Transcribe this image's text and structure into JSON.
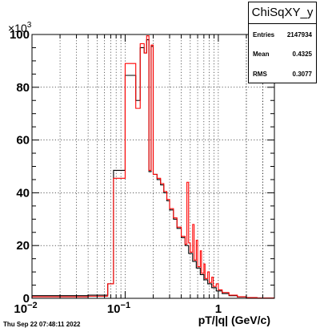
{
  "chart_data": {
    "type": "histogram",
    "title": "",
    "xlabel": "pT/|q| (GeV/c)",
    "ylabel": "",
    "x_scale": "log",
    "xlim": [
      0.01,
      4.0
    ],
    "ylim": [
      0,
      100000
    ],
    "y_exponent_label": "×10",
    "y_exponent_power": "3",
    "grid": true,
    "x_tick_labels": [
      {
        "x": 0.01,
        "label": "10",
        "power": "−2"
      },
      {
        "x": 0.1,
        "label": "10",
        "power": "−1"
      },
      {
        "x": 1,
        "label": "1",
        "power": ""
      }
    ],
    "y_tick_labels": [
      {
        "y": 0,
        "label": "0"
      },
      {
        "y": 20000,
        "label": "20"
      },
      {
        "y": 40000,
        "label": "40"
      },
      {
        "y": 60000,
        "label": "60"
      },
      {
        "y": 80000,
        "label": "80"
      },
      {
        "y": 100000,
        "label": "100"
      }
    ],
    "series": [
      {
        "color": "#000000",
        "bins": [
          [
            0.01,
            0.04,
            1000
          ],
          [
            0.04,
            0.065,
            1200
          ],
          [
            0.065,
            0.075,
            5500
          ],
          [
            0.075,
            0.1,
            48500
          ],
          [
            0.1,
            0.13,
            84500
          ],
          [
            0.13,
            0.145,
            75000
          ],
          [
            0.145,
            0.16,
            95000
          ],
          [
            0.16,
            0.17,
            93000
          ],
          [
            0.17,
            0.18,
            98000
          ],
          [
            0.18,
            0.19,
            48000
          ],
          [
            0.19,
            0.2,
            95500
          ],
          [
            0.2,
            0.22,
            47000
          ],
          [
            0.22,
            0.24,
            45000
          ],
          [
            0.24,
            0.26,
            43000
          ],
          [
            0.26,
            0.28,
            40000
          ],
          [
            0.28,
            0.3,
            37000
          ],
          [
            0.3,
            0.33,
            33500
          ],
          [
            0.33,
            0.36,
            30000
          ],
          [
            0.36,
            0.4,
            26500
          ],
          [
            0.4,
            0.44,
            23000
          ],
          [
            0.44,
            0.48,
            20000
          ],
          [
            0.48,
            0.53,
            17000
          ],
          [
            0.53,
            0.58,
            14000
          ],
          [
            0.58,
            0.64,
            11500
          ],
          [
            0.64,
            0.7,
            9000
          ],
          [
            0.7,
            0.77,
            7000
          ],
          [
            0.77,
            0.85,
            5500
          ],
          [
            0.85,
            0.95,
            4000
          ],
          [
            0.95,
            1.1,
            2800
          ],
          [
            1.1,
            1.3,
            1800
          ],
          [
            1.3,
            1.6,
            1000
          ],
          [
            1.6,
            2.0,
            500
          ],
          [
            2.0,
            2.6,
            250
          ],
          [
            2.6,
            4.0,
            100
          ]
        ]
      },
      {
        "color": "#ff0000",
        "bins": [
          [
            0.01,
            0.04,
            600
          ],
          [
            0.04,
            0.065,
            800
          ],
          [
            0.065,
            0.075,
            5500
          ],
          [
            0.075,
            0.1,
            45500
          ],
          [
            0.1,
            0.13,
            89000
          ],
          [
            0.13,
            0.145,
            72000
          ],
          [
            0.145,
            0.16,
            96500
          ],
          [
            0.16,
            0.17,
            93000
          ],
          [
            0.17,
            0.18,
            99500
          ],
          [
            0.18,
            0.19,
            48500
          ],
          [
            0.19,
            0.2,
            96000
          ],
          [
            0.2,
            0.22,
            47000
          ],
          [
            0.22,
            0.24,
            45500
          ],
          [
            0.24,
            0.26,
            43500
          ],
          [
            0.26,
            0.28,
            40500
          ],
          [
            0.28,
            0.3,
            37500
          ],
          [
            0.3,
            0.33,
            34000
          ],
          [
            0.33,
            0.36,
            30500
          ],
          [
            0.36,
            0.4,
            27000
          ],
          [
            0.4,
            0.44,
            23500
          ],
          [
            0.44,
            0.46,
            20500
          ],
          [
            0.46,
            0.48,
            44000
          ],
          [
            0.48,
            0.5,
            21000
          ],
          [
            0.5,
            0.53,
            17500
          ],
          [
            0.53,
            0.55,
            28000
          ],
          [
            0.55,
            0.58,
            14500
          ],
          [
            0.58,
            0.6,
            22000
          ],
          [
            0.6,
            0.64,
            12000
          ],
          [
            0.64,
            0.66,
            18000
          ],
          [
            0.66,
            0.7,
            9500
          ],
          [
            0.7,
            0.72,
            13000
          ],
          [
            0.72,
            0.77,
            7500
          ],
          [
            0.77,
            0.8,
            10000
          ],
          [
            0.8,
            0.85,
            6000
          ],
          [
            0.85,
            0.88,
            8000
          ],
          [
            0.88,
            0.95,
            4500
          ],
          [
            0.95,
            1.0,
            5500
          ],
          [
            1.0,
            1.1,
            3200
          ],
          [
            1.1,
            1.3,
            2200
          ],
          [
            1.3,
            1.6,
            1200
          ],
          [
            1.6,
            2.0,
            600
          ],
          [
            2.0,
            2.6,
            300
          ],
          [
            2.6,
            4.0,
            120
          ]
        ]
      }
    ]
  },
  "stats": {
    "title": "ChiSqXY_y",
    "rows": [
      {
        "label": "Entries",
        "value": "2147934"
      },
      {
        "label": "Mean",
        "value": "0.4325"
      },
      {
        "label": "RMS",
        "value": "0.3077"
      }
    ]
  },
  "timestamp": "Thu Sep 22 07:48:11 2022"
}
